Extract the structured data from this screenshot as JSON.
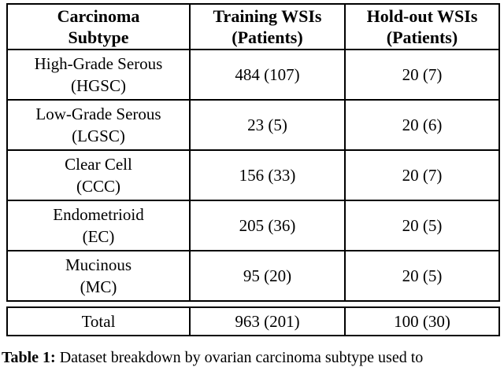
{
  "table": {
    "header": [
      {
        "line1": "Carcinoma",
        "line2": "Subtype"
      },
      {
        "line1": "Training WSIs",
        "line2": "(Patients)"
      },
      {
        "line1": "Hold-out WSIs",
        "line2": "(Patients)"
      }
    ],
    "rows": [
      {
        "name": "High-Grade Serous",
        "abbr": "(HGSC)",
        "training": "484 (107)",
        "holdout": "20 (7)"
      },
      {
        "name": "Low-Grade Serous",
        "abbr": "(LGSC)",
        "training": "23 (5)",
        "holdout": "20 (6)"
      },
      {
        "name": "Clear Cell",
        "abbr": "(CCC)",
        "training": "156 (33)",
        "holdout": "20 (7)"
      },
      {
        "name": "Endometrioid",
        "abbr": "(EC)",
        "training": "205 (36)",
        "holdout": "20 (5)"
      },
      {
        "name": "Mucinous",
        "abbr": "(MC)",
        "training": "95 (20)",
        "holdout": "20 (5)"
      }
    ],
    "total": {
      "label": "Total",
      "training": "963 (201)",
      "holdout": "100 (30)"
    }
  },
  "caption": {
    "label": "Table 1:",
    "text": "Dataset breakdown by ovarian carcinoma subtype used to"
  },
  "colors": {
    "text": "#000000",
    "border": "#000000",
    "background": "#ffffff"
  },
  "chart_data": {
    "type": "table",
    "title": "Table 1",
    "columns": [
      "Carcinoma Subtype",
      "Training WSIs (Patients)",
      "Hold-out WSIs (Patients)"
    ],
    "rows": [
      [
        "High-Grade Serous (HGSC)",
        "484 (107)",
        "20 (7)"
      ],
      [
        "Low-Grade Serous (LGSC)",
        "23 (5)",
        "20 (6)"
      ],
      [
        "Clear Cell (CCC)",
        "156 (33)",
        "20 (7)"
      ],
      [
        "Endometrioid (EC)",
        "205 (36)",
        "20 (5)"
      ],
      [
        "Mucinous (MC)",
        "95 (20)",
        "20 (5)"
      ],
      [
        "Total",
        "963 (201)",
        "100 (30)"
      ]
    ],
    "training_wsis": [
      484,
      23,
      156,
      205,
      95
    ],
    "training_patients": [
      107,
      5,
      33,
      36,
      20
    ],
    "holdout_wsis": [
      20,
      20,
      20,
      20,
      20
    ],
    "holdout_patients": [
      7,
      6,
      7,
      5,
      5
    ],
    "totals": {
      "training_wsis": 963,
      "training_patients": 201,
      "holdout_wsis": 100,
      "holdout_patients": 30
    }
  }
}
